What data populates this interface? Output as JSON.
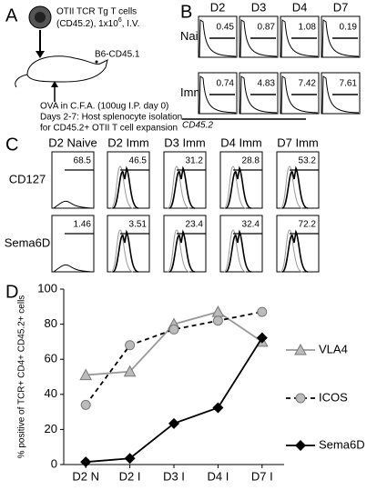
{
  "panel_a": {
    "label": "A",
    "cells_line1": "OTII TCR Tg T cells",
    "cells_line2": "(CD45.2), 1x10",
    "cells_exponent": "6",
    "cells_line2_end": ", I.V.",
    "host": "B6-CD45.1",
    "immunization": "OVA in C.F.A. (100ug I.P. day 0)",
    "isolation_line1": "Days 2-7: Host splenocyte isolation",
    "isolation_line2": "for CD45.2+ OTII T cell expansion"
  },
  "panel_b": {
    "label": "B",
    "columns": [
      "D2",
      "D3",
      "D4",
      "D7"
    ],
    "rows": [
      {
        "name": "Naive",
        "values": [
          0.45,
          0.87,
          1.08,
          0.19
        ]
      },
      {
        "name": "Immune",
        "values": [
          0.74,
          4.83,
          7.42,
          7.61
        ]
      }
    ],
    "axis_label": "CD45.2"
  },
  "panel_c": {
    "label": "C",
    "columns": [
      "D2 Naive",
      "D2 Imm",
      "D3 Imm",
      "D4 Imm",
      "D7 Imm"
    ],
    "rows": [
      {
        "name": "CD127",
        "values": [
          68.5,
          46.5,
          31.2,
          28.8,
          53.2
        ]
      },
      {
        "name": "Sema6D",
        "values": [
          1.46,
          3.51,
          23.4,
          32.4,
          72.2
        ]
      }
    ]
  },
  "chart_data": {
    "type": "line",
    "label": "D",
    "y_label": "% positive of TCR+ CD4+ CD45.2+ cells",
    "categories": [
      "D2 N",
      "D2 I",
      "D3 I",
      "D4 I",
      "D7 I"
    ],
    "series": [
      {
        "name": "VLA4",
        "color": "#999999",
        "marker": "triangle",
        "dashed": false,
        "values": [
          51,
          53,
          80,
          87,
          70
        ]
      },
      {
        "name": "ICOS",
        "color": "#000000",
        "marker": "circle",
        "dashed": true,
        "values": [
          34,
          68,
          77,
          82,
          87
        ]
      },
      {
        "name": "Sema6D",
        "color": "#000000",
        "marker": "diamond",
        "dashed": false,
        "values": [
          1.46,
          3.51,
          23.4,
          32.4,
          72.2
        ]
      }
    ],
    "ylim": [
      0,
      100
    ],
    "yticks": [
      0,
      20,
      40,
      60,
      80,
      100
    ]
  }
}
